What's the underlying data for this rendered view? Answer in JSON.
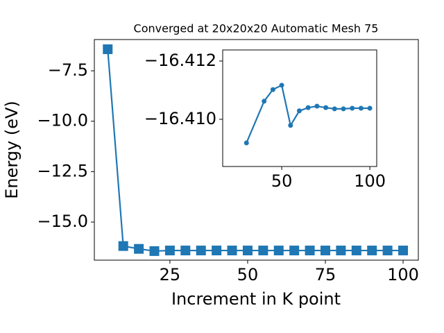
{
  "chart_data": [
    {
      "type": "line",
      "title": "Converged at 20x20x20 Automatic Mesh 75",
      "x_label": "Increment in K point",
      "y_label": "Energy (eV)",
      "x": [
        5,
        10,
        15,
        20,
        25,
        30,
        35,
        40,
        45,
        50,
        55,
        60,
        65,
        70,
        75,
        80,
        85,
        90,
        95,
        100
      ],
      "series": [
        {
          "color": "#1f77b4",
          "marker": "square",
          "values": [
            -6.43,
            -16.19,
            -16.33,
            -16.44,
            -16.41,
            -16.41,
            -16.41,
            -16.41,
            -16.41,
            -16.41,
            -16.41,
            -16.41,
            -16.41,
            -16.41,
            -16.41,
            -16.41,
            -16.41,
            -16.41,
            -16.41,
            -16.41
          ]
        }
      ],
      "xlim": [
        0.7,
        104.9
      ],
      "ylim": [
        -16.89,
        -5.95
      ],
      "xticks": [
        25,
        50,
        75,
        100
      ],
      "yticks": [
        {
          "value": -7.5,
          "label": "−7.5"
        },
        {
          "value": -10,
          "label": "−10.0"
        },
        {
          "value": -12.5,
          "label": "−12.5"
        },
        {
          "value": -15,
          "label": "−15.0"
        }
      ]
    },
    {
      "type": "line",
      "x": [
        30,
        40,
        45,
        50,
        55,
        60,
        65,
        70,
        75,
        80,
        85,
        90,
        95,
        100
      ],
      "series": [
        {
          "color": "#1f77b4",
          "marker": "circle",
          "values": [
            -16.40919,
            -16.41062,
            -16.41102,
            -16.41117,
            -16.40979,
            -16.41029,
            -16.4104,
            -16.41045,
            -16.4104,
            -16.41036,
            -16.41036,
            -16.41038,
            -16.41038,
            -16.41038
          ]
        }
      ],
      "xlim": [
        16.5,
        103.9
      ],
      "ylim": [
        -16.40838,
        -16.41238
      ],
      "xticks": [
        50,
        100
      ],
      "yticks": [
        {
          "value": -16.412,
          "label": "−16.412"
        },
        {
          "value": -16.41,
          "label": "−16.410"
        }
      ]
    }
  ]
}
